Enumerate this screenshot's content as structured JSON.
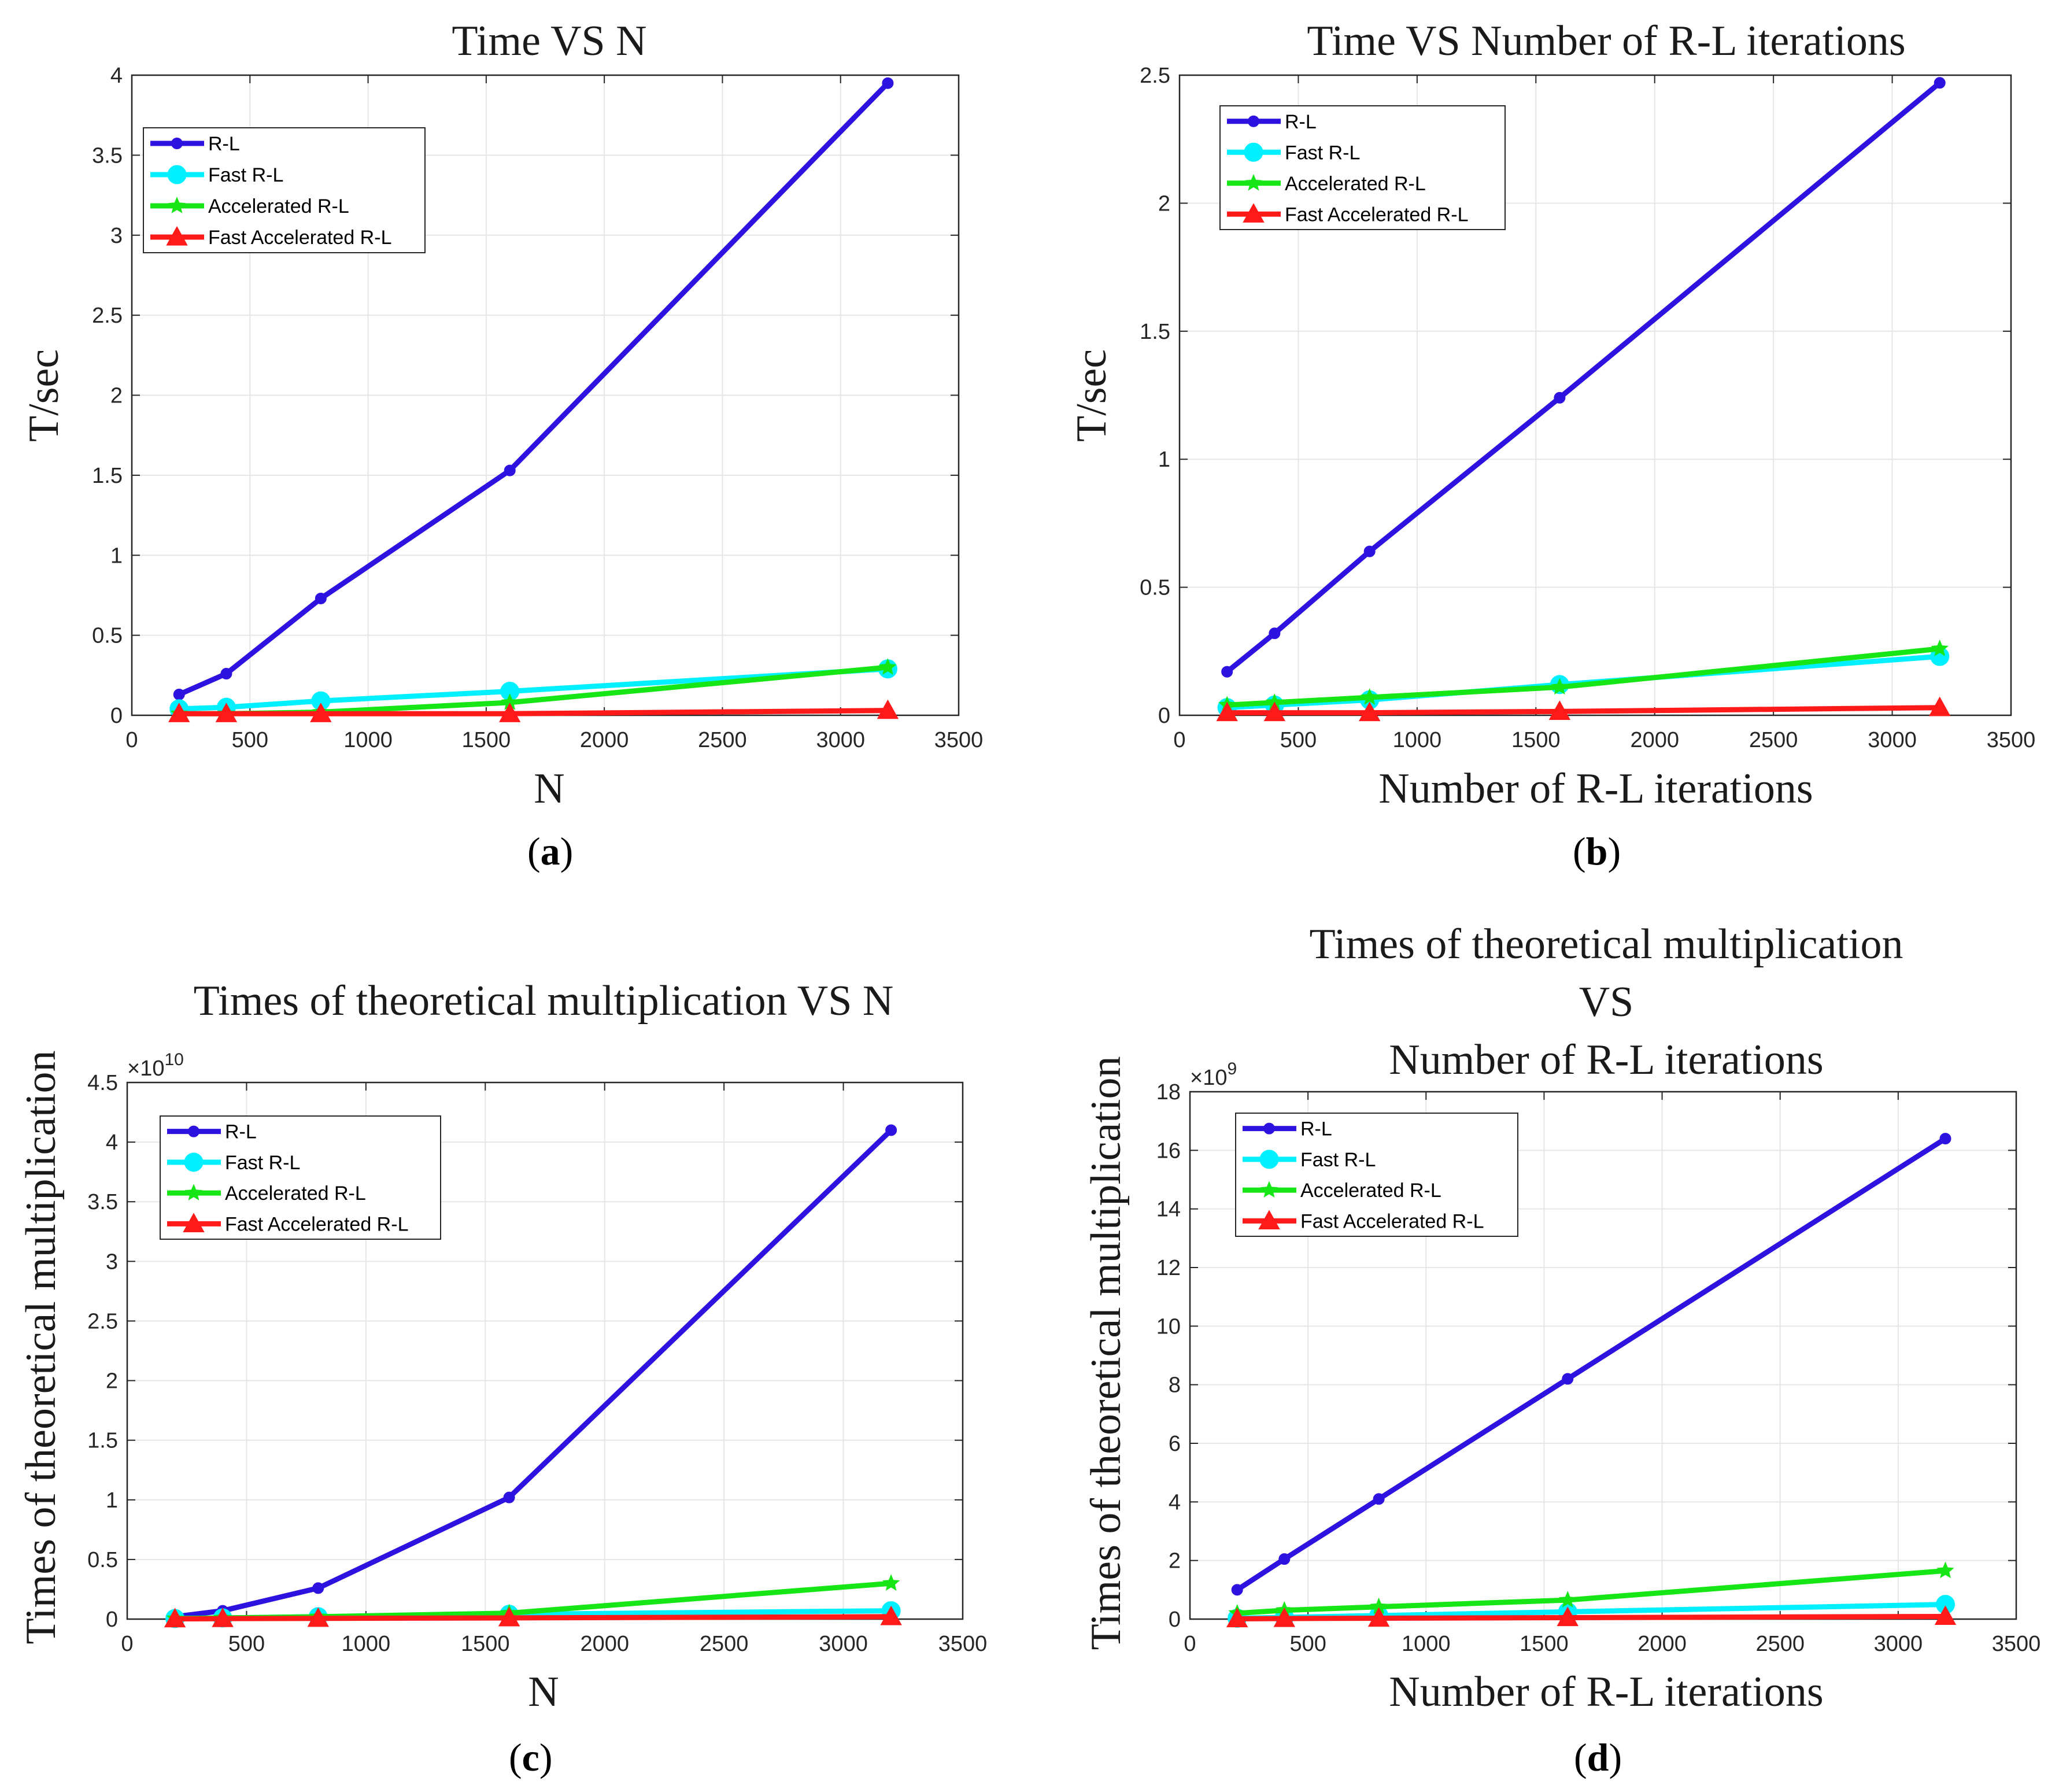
{
  "colors": {
    "rl": "#2e12e0",
    "fast_rl": "#00f0ff",
    "accelerated_rl": "#16e616",
    "fast_accelerated_rl": "#ff1a1a",
    "grid": "#e6e6e6",
    "axis": "#262626"
  },
  "series_style": [
    {
      "name": "R-L",
      "marker": "dot"
    },
    {
      "name": "Fast R-L",
      "marker": "circle"
    },
    {
      "name": "Accelerated R-L",
      "marker": "star"
    },
    {
      "name": "Fast Accelerated R-L",
      "marker": "triangle"
    }
  ],
  "captions": [
    {
      "open": "(",
      "letter": "a",
      "close": ")"
    },
    {
      "open": "(",
      "letter": "b",
      "close": ")"
    },
    {
      "open": "(",
      "letter": "c",
      "close": ")"
    },
    {
      "open": "(",
      "letter": "d",
      "close": ")"
    }
  ],
  "chart_data": [
    {
      "type": "line",
      "title_lines": [
        "Time VS N"
      ],
      "xlabel": "N",
      "ylabel": "T/sec",
      "xlim": [
        0,
        3500
      ],
      "ylim": [
        0,
        4
      ],
      "xticks": [
        0,
        500,
        1000,
        1500,
        2000,
        2500,
        3000,
        3500
      ],
      "xtick_labels": [
        "0",
        "500",
        "1000",
        "1500",
        "2000",
        "2500",
        "3000",
        "3500"
      ],
      "yticks": [
        0,
        0.5,
        1,
        1.5,
        2,
        2.5,
        3,
        3.5,
        4
      ],
      "ytick_labels": [
        "0",
        "0.5",
        "1",
        "1.5",
        "2",
        "2.5",
        "3",
        "3.5",
        "4"
      ],
      "exponent": null,
      "grid": true,
      "legend_position": "top-left",
      "x": [
        200,
        400,
        800,
        1600,
        3200
      ],
      "series": [
        {
          "name": "R-L",
          "values": [
            0.13,
            0.26,
            0.73,
            1.53,
            3.95
          ]
        },
        {
          "name": "Fast R-L",
          "values": [
            0.04,
            0.05,
            0.09,
            0.15,
            0.29
          ]
        },
        {
          "name": "Accelerated R-L",
          "values": [
            0.01,
            0.01,
            0.02,
            0.08,
            0.3
          ]
        },
        {
          "name": "Fast Accelerated R-L",
          "values": [
            0.01,
            0.01,
            0.01,
            0.01,
            0.03
          ]
        }
      ]
    },
    {
      "type": "line",
      "title_lines": [
        "Time VS Number of R-L iterations"
      ],
      "xlabel": "Number of R-L iterations",
      "ylabel": "T/sec",
      "xlim": [
        0,
        3500
      ],
      "ylim": [
        0,
        2.5
      ],
      "xticks": [
        0,
        500,
        1000,
        1500,
        2000,
        2500,
        3000,
        3500
      ],
      "xtick_labels": [
        "0",
        "500",
        "1000",
        "1500",
        "2000",
        "2500",
        "3000",
        "3500"
      ],
      "yticks": [
        0,
        0.5,
        1,
        1.5,
        2,
        2.5
      ],
      "ytick_labels": [
        "0",
        "0.5",
        "1",
        "1.5",
        "2",
        "2.5"
      ],
      "exponent": null,
      "grid": true,
      "legend_position": "top-left",
      "x": [
        200,
        400,
        800,
        1600,
        3200
      ],
      "series": [
        {
          "name": "R-L",
          "values": [
            0.17,
            0.32,
            0.64,
            1.24,
            2.47
          ]
        },
        {
          "name": "Fast R-L",
          "values": [
            0.03,
            0.04,
            0.06,
            0.12,
            0.23
          ]
        },
        {
          "name": "Accelerated R-L",
          "values": [
            0.04,
            0.05,
            0.07,
            0.11,
            0.26
          ]
        },
        {
          "name": "Fast Accelerated R-L",
          "values": [
            0.01,
            0.01,
            0.01,
            0.015,
            0.03
          ]
        }
      ]
    },
    {
      "type": "line",
      "title_lines": [
        "Times of theoretical multiplication VS N"
      ],
      "xlabel": "N",
      "ylabel": "Times of theoretical multiplication",
      "xlim": [
        0,
        3500
      ],
      "ylim": [
        0,
        4.5
      ],
      "xticks": [
        0,
        500,
        1000,
        1500,
        2000,
        2500,
        3000,
        3500
      ],
      "xtick_labels": [
        "0",
        "500",
        "1000",
        "1500",
        "2000",
        "2500",
        "3000",
        "3500"
      ],
      "yticks": [
        0,
        0.5,
        1,
        1.5,
        2,
        2.5,
        3,
        3.5,
        4,
        4.5
      ],
      "ytick_labels": [
        "0",
        "0.5",
        "1",
        "1.5",
        "2",
        "2.5",
        "3",
        "3.5",
        "4",
        "4.5"
      ],
      "exponent": {
        "base": "×10",
        "power": "10"
      },
      "grid": true,
      "legend_position": "top-left",
      "x": [
        200,
        400,
        800,
        1600,
        3200
      ],
      "series": [
        {
          "name": "R-L",
          "values": [
            0.02,
            0.07,
            0.26,
            1.02,
            4.1
          ]
        },
        {
          "name": "Fast R-L",
          "values": [
            0.005,
            0.01,
            0.02,
            0.04,
            0.07
          ]
        },
        {
          "name": "Accelerated R-L",
          "values": [
            0.005,
            0.01,
            0.02,
            0.05,
            0.3
          ]
        },
        {
          "name": "Fast Accelerated R-L",
          "values": [
            0.002,
            0.004,
            0.006,
            0.01,
            0.02
          ]
        }
      ]
    },
    {
      "type": "line",
      "title_lines": [
        "Times of theoretical multiplication",
        "VS",
        "Number of R-L iterations"
      ],
      "xlabel": "Number of R-L iterations",
      "ylabel": "Times of theoretical multiplication",
      "xlim": [
        0,
        3500
      ],
      "ylim": [
        0,
        18
      ],
      "xticks": [
        0,
        500,
        1000,
        1500,
        2000,
        2500,
        3000,
        3500
      ],
      "xtick_labels": [
        "0",
        "500",
        "1000",
        "1500",
        "2000",
        "2500",
        "3000",
        "3500"
      ],
      "yticks": [
        0,
        2,
        4,
        6,
        8,
        10,
        12,
        14,
        16,
        18
      ],
      "ytick_labels": [
        "0",
        "2",
        "4",
        "6",
        "8",
        "10",
        "12",
        "14",
        "16",
        "18"
      ],
      "exponent": {
        "base": "×10",
        "power": "9"
      },
      "grid": true,
      "legend_position": "top-left",
      "x": [
        200,
        400,
        800,
        1600,
        3200
      ],
      "series": [
        {
          "name": "R-L",
          "values": [
            1.0,
            2.05,
            4.1,
            8.2,
            16.4
          ]
        },
        {
          "name": "Fast R-L",
          "values": [
            0.03,
            0.06,
            0.12,
            0.25,
            0.5
          ]
        },
        {
          "name": "Accelerated R-L",
          "values": [
            0.2,
            0.3,
            0.42,
            0.65,
            1.65
          ]
        },
        {
          "name": "Fast Accelerated R-L",
          "values": [
            0.01,
            0.02,
            0.03,
            0.05,
            0.09
          ]
        }
      ]
    }
  ]
}
